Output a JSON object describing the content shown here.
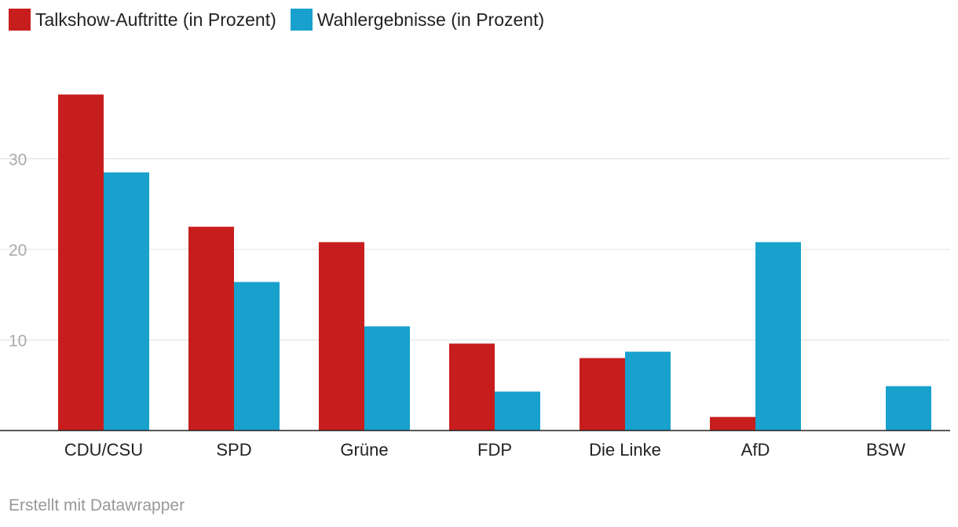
{
  "chart_data": {
    "type": "bar",
    "categories": [
      "CDU/CSU",
      "SPD",
      "Grüne",
      "FDP",
      "Die Linke",
      "AfD",
      "BSW"
    ],
    "series": [
      {
        "name": "Talkshow-Auftritte (in Prozent)",
        "color": "#c71e1d",
        "values": [
          37.1,
          22.5,
          20.8,
          9.6,
          8.0,
          1.5,
          0
        ]
      },
      {
        "name": "Wahlergebnisse (in Prozent)",
        "color": "#18a1cd",
        "values": [
          28.5,
          16.4,
          11.5,
          4.3,
          8.7,
          20.8,
          4.9
        ]
      }
    ],
    "yticks": [
      10,
      20,
      30
    ],
    "ylim": [
      0,
      40
    ],
    "grid": true,
    "legend_position": "top-left",
    "xlabel": "",
    "ylabel": ""
  },
  "footer": {
    "credit": "Erstellt mit Datawrapper"
  }
}
